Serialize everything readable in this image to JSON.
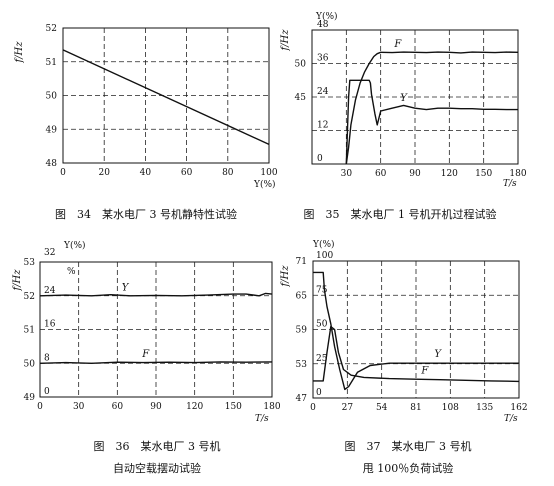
{
  "figures": [
    {
      "caption_lines": [
        "图　34　某水电厂 3 号机静特性试验"
      ],
      "y_axis_label": "f/Hz",
      "x_axis_label": "Y(%)"
    },
    {
      "caption_lines": [
        "图　35　某水电厂 1 号机开机过程试验"
      ],
      "y_axis_label": "f/Hz",
      "y2_axis_label": "Y(%)",
      "x_axis_label": "T/s",
      "series_labels": [
        "F",
        "Y"
      ]
    },
    {
      "caption_lines": [
        "图　36　某水电厂 3 号机",
        "自动空载摆动试验"
      ],
      "y_axis_label": "f/Hz",
      "y2_axis_label": "Y(%)",
      "y2_unit": "%",
      "x_axis_label": "T/s",
      "series_labels": [
        "Y",
        "F"
      ]
    },
    {
      "caption_lines": [
        "图　37　某水电厂 3 号机",
        "甩 100％负荷试验"
      ],
      "y_axis_label": "f/Hz",
      "y2_axis_label": "Y(%)",
      "x_axis_label": "T/s",
      "series_labels": [
        "Y",
        "F"
      ]
    }
  ],
  "chart_data": [
    {
      "type": "line",
      "x": [
        0,
        100
      ],
      "xlim": [
        0,
        100
      ],
      "ylim": [
        48,
        52
      ],
      "x_ticks": [
        "0",
        "20",
        "40",
        "60",
        "80",
        "100"
      ],
      "y_ticks": [
        "48",
        "49",
        "50",
        "51",
        "52"
      ],
      "grid": "dashed",
      "series": [
        {
          "values": [
            51.35,
            48.55
          ]
        }
      ]
    },
    {
      "type": "line",
      "xlim": [
        0,
        180
      ],
      "x_ticks": [
        "30",
        "60",
        "90",
        "120",
        "150",
        "180"
      ],
      "y2_ticks": [
        "0",
        "12",
        "24",
        "36",
        "48"
      ],
      "ylim": [
        0,
        48
      ],
      "y_tick_left": [
        "45",
        "50"
      ],
      "grid": "dashed",
      "series": [
        {
          "name": "F",
          "x": [
            30,
            32,
            34,
            38,
            42,
            46,
            50,
            54,
            57,
            60,
            70,
            80,
            90,
            100,
            110,
            120,
            130,
            140,
            150,
            160,
            170,
            180
          ],
          "values": [
            0,
            6,
            14,
            23,
            29,
            33,
            36,
            38.5,
            39.5,
            40,
            39.9,
            40.1,
            40,
            39.9,
            40.1,
            40,
            39.8,
            40.1,
            40,
            39.9,
            40.1,
            40
          ]
        },
        {
          "name": "Y",
          "x": [
            30,
            32,
            33,
            34,
            50,
            51,
            52,
            55,
            57,
            60,
            70,
            80,
            90,
            100,
            110,
            120,
            130,
            140,
            150,
            160,
            170,
            180
          ],
          "values": [
            0,
            24,
            30,
            30,
            30,
            29,
            25,
            18,
            14,
            19,
            20,
            21,
            20,
            19.5,
            20,
            20,
            19.8,
            19.8,
            19.6,
            19.6,
            19.5,
            19.5
          ]
        }
      ]
    },
    {
      "type": "line",
      "xlim": [
        0,
        180
      ],
      "ylim": [
        49,
        53
      ],
      "x_ticks": [
        "0",
        "30",
        "60",
        "90",
        "120",
        "150",
        "180"
      ],
      "y_ticks": [
        "49",
        "50",
        "51",
        "52",
        "53"
      ],
      "y2_ticks": [
        "0",
        "8",
        "16",
        "24",
        "32"
      ],
      "grid": "dashed",
      "series": [
        {
          "name": "Y",
          "x": [
            0,
            20,
            40,
            55,
            70,
            90,
            110,
            130,
            150,
            160,
            170,
            175,
            180
          ],
          "values": [
            52.0,
            52.02,
            52.0,
            52.03,
            52.0,
            52.01,
            52.0,
            52.02,
            52.05,
            52.05,
            52.0,
            52.07,
            52.05
          ]
        },
        {
          "name": "F",
          "x": [
            0,
            20,
            40,
            60,
            80,
            100,
            120,
            140,
            160,
            180
          ],
          "values": [
            50.0,
            50.02,
            50.0,
            50.03,
            50.02,
            50.03,
            50.02,
            50.04,
            50.03,
            50.04
          ]
        }
      ]
    },
    {
      "type": "line",
      "xlim": [
        0,
        162
      ],
      "ylim": [
        47,
        71
      ],
      "x_ticks": [
        "0",
        "27",
        "54",
        "81",
        "108",
        "135",
        "162"
      ],
      "y_ticks": [
        "47",
        "53",
        "59",
        "65",
        "71"
      ],
      "y2_ticks": [
        "0",
        "25",
        "50",
        "75",
        "100"
      ],
      "grid": "dashed",
      "series": [
        {
          "name": "Y",
          "x": [
            0,
            4,
            8,
            9,
            11,
            14,
            17,
            21,
            25,
            28,
            35,
            45,
            60,
            80,
            100,
            120,
            140,
            162
          ],
          "values": [
            69,
            69,
            69,
            66,
            63,
            60,
            56,
            52,
            48.5,
            49,
            51.5,
            52.7,
            53.1,
            53.1,
            53.1,
            53.1,
            53.1,
            53.1
          ]
        },
        {
          "name": "F",
          "x": [
            0,
            8,
            11,
            14,
            17,
            20,
            24,
            30,
            40,
            60,
            80,
            100,
            120,
            140,
            162
          ],
          "values": [
            50,
            50,
            55,
            59.5,
            59,
            55,
            52,
            51,
            50.6,
            50.4,
            50.3,
            50.2,
            50.1,
            50,
            49.9
          ]
        }
      ]
    }
  ]
}
